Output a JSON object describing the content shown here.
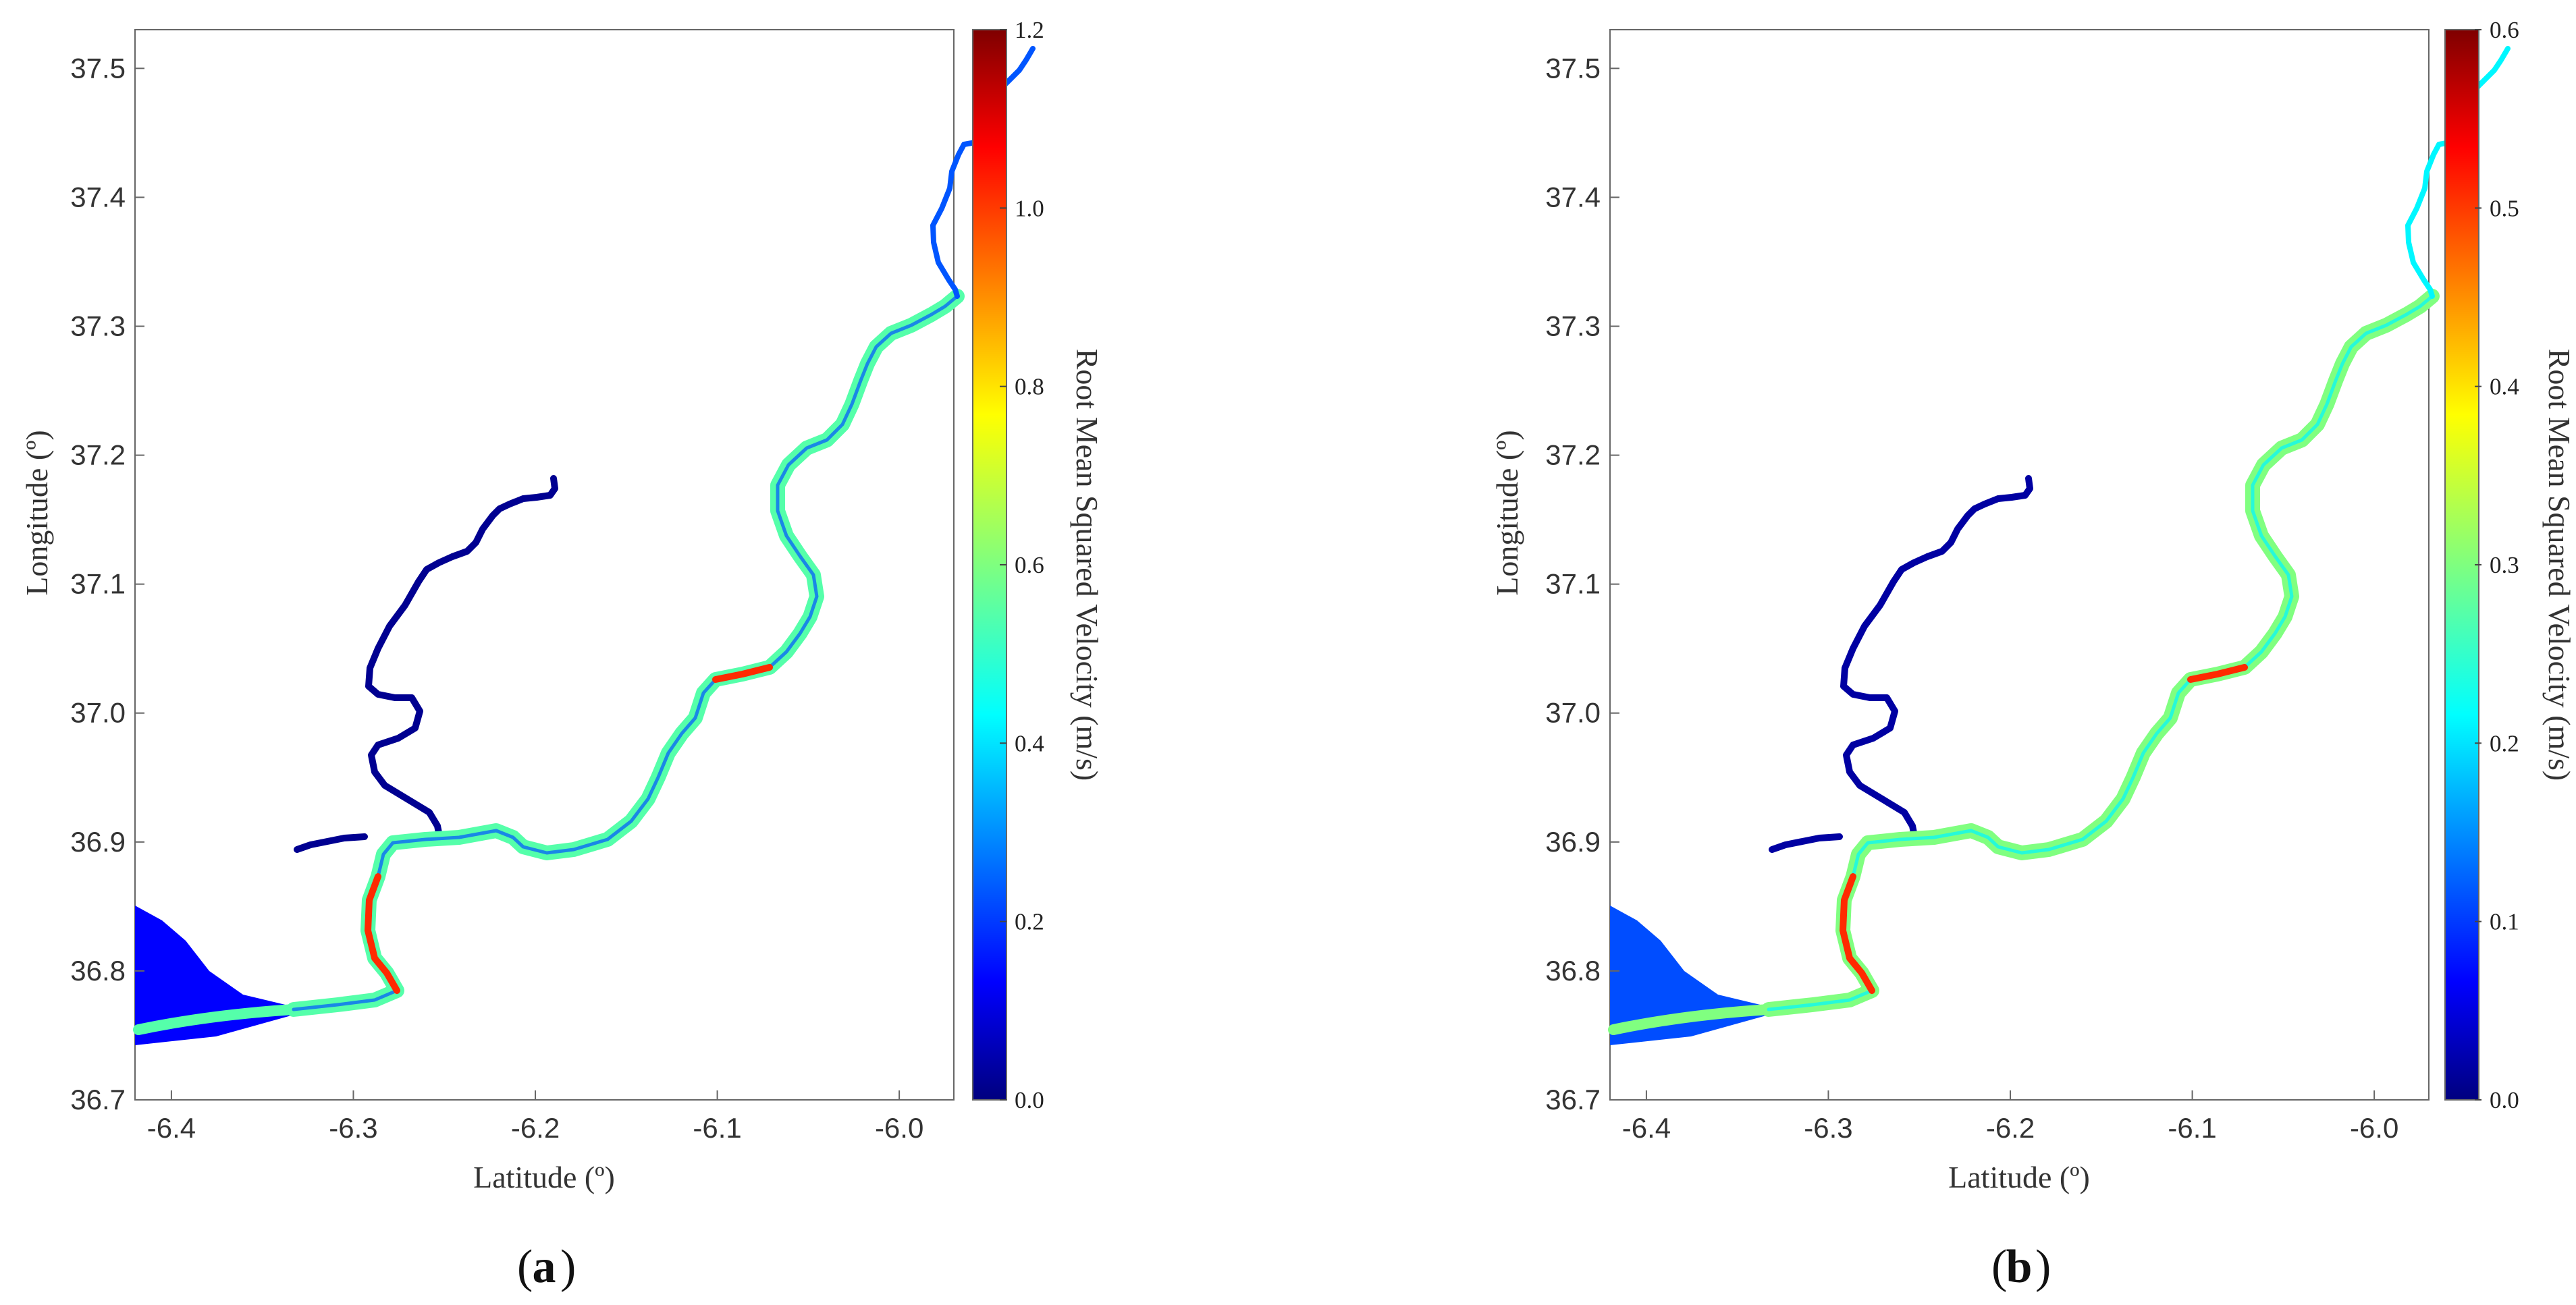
{
  "chart_data": [
    {
      "type": "heatmap",
      "panel_label": "a",
      "xlabel": "Latitude (º)",
      "ylabel": "Longitude (º)",
      "xlim": [
        -6.42,
        -5.97
      ],
      "ylim": [
        36.7,
        37.53
      ],
      "xticks": [
        "-6.4",
        "-6.3",
        "-6.2",
        "-6.1",
        "-6.0"
      ],
      "yticks": [
        "36.7",
        "36.8",
        "36.9",
        "37.0",
        "37.1",
        "37.2",
        "37.3",
        "37.4",
        "37.5"
      ],
      "colorbar": {
        "label": "Root Mean Squared Velocity (m/s)",
        "range": [
          0,
          1.2
        ],
        "ticks": [
          "0.0",
          "0.2",
          "0.4",
          "0.6",
          "0.8",
          "1.0",
          "1.2"
        ],
        "colormap": "jet"
      },
      "river_level": {
        "main": 0.55,
        "hotspot": 1.0,
        "upper_river": 0.25,
        "side_channel": 0.02,
        "estuary_mouth": 0.15
      }
    },
    {
      "type": "heatmap",
      "panel_label": "b",
      "xlabel": "Latitude (º)",
      "ylabel": "Longitude (º)",
      "xlim": [
        -6.42,
        -5.97
      ],
      "ylim": [
        36.7,
        37.53
      ],
      "xticks": [
        "-6.4",
        "-6.3",
        "-6.2",
        "-6.1",
        "-6.0"
      ],
      "yticks": [
        "36.7",
        "36.8",
        "36.9",
        "37.0",
        "37.1",
        "37.2",
        "37.3",
        "37.4",
        "37.5"
      ],
      "colorbar": {
        "label": "Root Mean Squared Velocity (m/s)",
        "range": [
          0,
          0.6
        ],
        "ticks": [
          "0.0",
          "0.1",
          "0.2",
          "0.3",
          "0.4",
          "0.5",
          "0.6"
        ],
        "colormap": "jet"
      },
      "river_level": {
        "main": 0.3,
        "hotspot": 0.5,
        "upper_river": 0.22,
        "side_channel": 0.02,
        "estuary_mouth": 0.12
      }
    }
  ],
  "colors": {
    "jet_stops": [
      "#00007f",
      "#0000ff",
      "#007fff",
      "#00ffff",
      "#7fff7f",
      "#ffff00",
      "#ff7f00",
      "#ff0000",
      "#7f0000"
    ],
    "axis": "#555555"
  }
}
